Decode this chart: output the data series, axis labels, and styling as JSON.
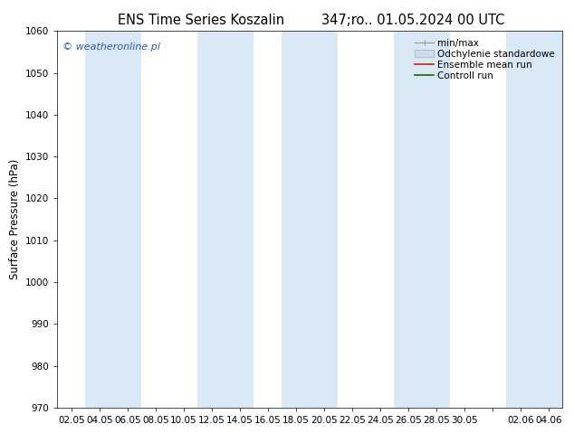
{
  "title_left": "ENS Time Series Koszalin",
  "title_right": "347;ro.. 01.05.2024 00 UTC",
  "ylabel": "Surface Pressure (hPa)",
  "ylim": [
    970,
    1060
  ],
  "yticks": [
    970,
    980,
    990,
    1000,
    1010,
    1020,
    1030,
    1040,
    1050,
    1060
  ],
  "xtick_labels": [
    "02.05",
    "04.05",
    "06.05",
    "08.05",
    "10.05",
    "12.05",
    "14.05",
    "16.05",
    "18.05",
    "20.05",
    "22.05",
    "24.05",
    "26.05",
    "28.05",
    "30.05",
    "",
    "02.06",
    "04.06"
  ],
  "background_color": "#ffffff",
  "band_color": "#d8e8f5",
  "watermark": "© weatheronline.pl",
  "watermark_color": "#3355bb",
  "legend_items": [
    {
      "label": "min/max",
      "color": "#999999",
      "type": "errorbar"
    },
    {
      "label": "Odchylenie standardowe",
      "color": "#ccddee",
      "type": "rect"
    },
    {
      "label": "Ensemble mean run",
      "color": "#cc2200",
      "type": "line"
    },
    {
      "label": "Controll run",
      "color": "#226600",
      "type": "line"
    }
  ],
  "title_fontsize": 10.5,
  "tick_fontsize": 7.5,
  "ylabel_fontsize": 8.5,
  "legend_fontsize": 7.5,
  "watermark_fontsize": 8
}
